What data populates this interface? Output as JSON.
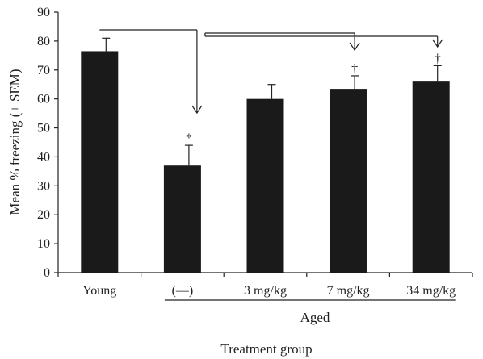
{
  "chart_data": {
    "type": "bar",
    "categories": [
      "Young",
      "(—)",
      "3 mg/kg",
      "7 mg/kg",
      "34 mg/kg"
    ],
    "values": [
      76.5,
      37,
      60,
      63.5,
      66
    ],
    "error": [
      4.5,
      7,
      5,
      4.5,
      5.5
    ],
    "significance": [
      "",
      "*",
      "",
      "†",
      "†"
    ],
    "ylabel": "Mean % freezing (± SEM)",
    "xlabel": "Treatment group",
    "group_label": "Aged",
    "group_members": [
      "(—)",
      "3 mg/kg",
      "7 mg/kg",
      "34 mg/kg"
    ],
    "comparisons": [
      {
        "from": "Young",
        "to": "(—)"
      },
      {
        "from": "(—)",
        "to": "7 mg/kg"
      },
      {
        "from": "(—)",
        "to": "34 mg/kg"
      }
    ],
    "ylim": [
      0,
      90
    ],
    "yticks": [
      0,
      10,
      20,
      30,
      40,
      50,
      60,
      70,
      80,
      90
    ],
    "grid": false,
    "bar_color": "#1a1a1a"
  }
}
